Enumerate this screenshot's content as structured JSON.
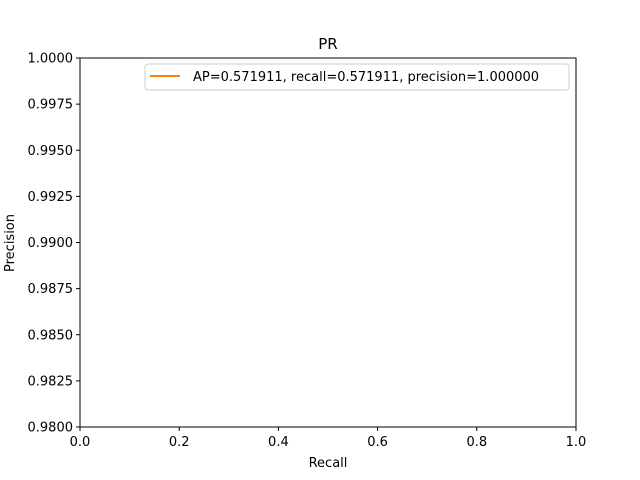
{
  "chart_data": {
    "type": "line",
    "title": "PR",
    "xlabel": "Recall",
    "ylabel": "Precision",
    "xlim": [
      0.0,
      1.0
    ],
    "ylim": [
      0.98,
      1.0
    ],
    "xticks": [
      "0.0",
      "0.2",
      "0.4",
      "0.6",
      "0.8",
      "1.0"
    ],
    "yticks": [
      "0.9800",
      "0.9825",
      "0.9850",
      "0.9875",
      "0.9900",
      "0.9925",
      "0.9950",
      "0.9975",
      "1.0000"
    ],
    "grid": false,
    "legend_position": "top-right",
    "series": [
      {
        "name": "AP=0.571911, recall=0.571911, precision=1.000000",
        "color": "#ff7f0e",
        "x": [],
        "y": []
      }
    ]
  }
}
